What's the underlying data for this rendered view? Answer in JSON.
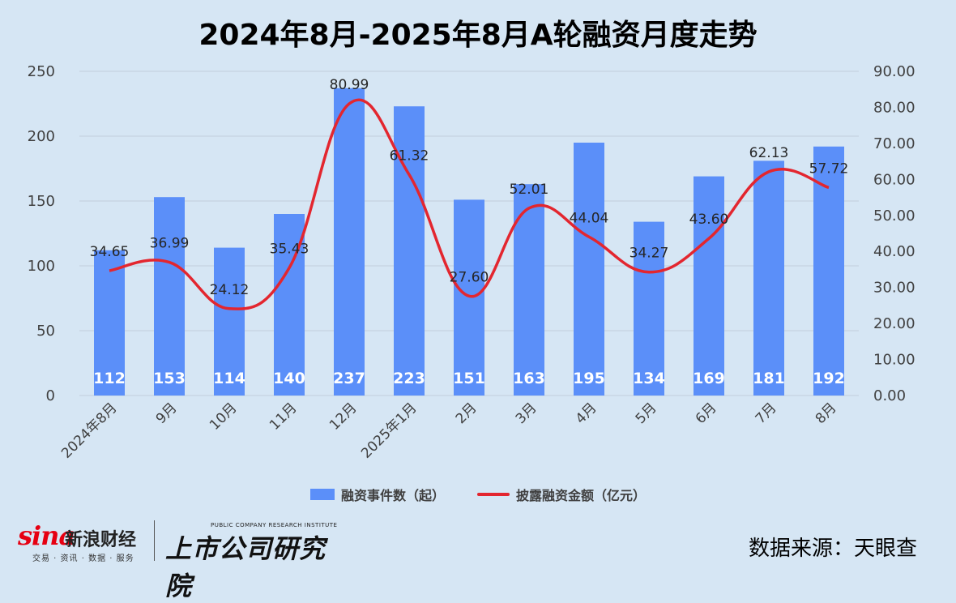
{
  "title": "2024年8月-2025年8月A轮融资月度走势",
  "chart_data": {
    "type": "bar",
    "categories": [
      "2024年8月",
      "9月",
      "10月",
      "11月",
      "12月",
      "2025年1月",
      "2月",
      "3月",
      "4月",
      "5月",
      "6月",
      "7月",
      "8月"
    ],
    "series": [
      {
        "name": "融资事件数（起）",
        "type": "bar",
        "axis": "left",
        "color": "#5b8ff9",
        "values": [
          112,
          153,
          114,
          140,
          237,
          223,
          151,
          163,
          195,
          134,
          169,
          181,
          192
        ]
      },
      {
        "name": "披露融资金额（亿元）",
        "type": "line",
        "axis": "right",
        "color": "#e3262f",
        "values": [
          34.65,
          36.99,
          24.12,
          35.43,
          80.99,
          61.32,
          27.6,
          52.01,
          44.04,
          34.27,
          43.6,
          62.13,
          57.72
        ]
      }
    ],
    "y_left": {
      "min": 0,
      "max": 250,
      "ticks": [
        "0",
        "50",
        "100",
        "150",
        "200",
        "250"
      ]
    },
    "y_right": {
      "min": 0,
      "max": 90,
      "ticks": [
        "0.00",
        "10.00",
        "20.00",
        "30.00",
        "40.00",
        "50.00",
        "60.00",
        "70.00",
        "80.00",
        "90.00"
      ]
    },
    "line_labels": [
      "34.65",
      "36.99",
      "24.12",
      "35.43",
      "80.99",
      "61.32",
      "27.60",
      "52.01",
      "44.04",
      "34.27",
      "43.60",
      "62.13",
      "57.72"
    ],
    "bar_labels": [
      "112",
      "153",
      "114",
      "140",
      "237",
      "223",
      "151",
      "163",
      "195",
      "134",
      "169",
      "181",
      "192"
    ],
    "grid": true,
    "legend_position": "bottom"
  },
  "footer": {
    "logo_sina": "sina",
    "logo_sina_cn": "新浪财经",
    "logo_sina_sub": "交易 · 资讯 · 数据 · 服务",
    "logo_institute_en": "PUBLIC COMPANY RESEARCH INSTITUTE",
    "logo_institute_cn": "上市公司研究院",
    "source": "数据来源：天眼查"
  }
}
